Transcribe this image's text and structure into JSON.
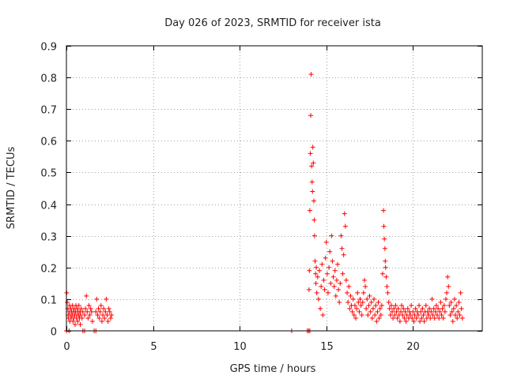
{
  "chart_data": {
    "type": "scatter",
    "title": "Day 026 of 2023, SRMTID for receiver ista",
    "xlabel": "GPS time / hours",
    "ylabel": "SRMTID / TECUs",
    "xlim": [
      0,
      24
    ],
    "ylim": [
      0,
      0.9
    ],
    "xticks": [
      0,
      5,
      10,
      15,
      20
    ],
    "yticks": [
      0,
      0.1,
      0.2,
      0.3,
      0.4,
      0.5,
      0.6,
      0.7,
      0.8,
      0.9
    ],
    "xtick_labels": [
      "0",
      "5",
      "10",
      "15",
      "20"
    ],
    "ytick_labels": [
      "0",
      "0.1",
      "0.2",
      "0.3",
      "0.4",
      "0.5",
      "0.6",
      "0.7",
      "0.8",
      "0.9"
    ],
    "grid": true,
    "marker": "+",
    "color": "#ff0000",
    "series": [
      {
        "name": "SRMTID",
        "points": [
          [
            0.02,
            0.12
          ],
          [
            0.05,
            0.09
          ],
          [
            0.08,
            0.07
          ],
          [
            0.1,
            0.05
          ],
          [
            0.12,
            0.04
          ],
          [
            0.15,
            0.06
          ],
          [
            0.18,
            0.08
          ],
          [
            0.2,
            0.03
          ],
          [
            0.22,
            0.05
          ],
          [
            0.25,
            0.07
          ],
          [
            0.28,
            0.04
          ],
          [
            0.3,
            0.06
          ],
          [
            0.33,
            0.05
          ],
          [
            0.35,
            0.08
          ],
          [
            0.38,
            0.03
          ],
          [
            0.4,
            0.06
          ],
          [
            0.42,
            0.04
          ],
          [
            0.45,
            0.07
          ],
          [
            0.48,
            0.05
          ],
          [
            0.5,
            0.02
          ],
          [
            0.52,
            0.06
          ],
          [
            0.55,
            0.08
          ],
          [
            0.58,
            0.04
          ],
          [
            0.6,
            0.05
          ],
          [
            0.62,
            0.07
          ],
          [
            0.65,
            0.03
          ],
          [
            0.68,
            0.06
          ],
          [
            0.7,
            0.05
          ],
          [
            0.72,
            0.08
          ],
          [
            0.75,
            0.04
          ],
          [
            0.78,
            0.06
          ],
          [
            0.8,
            0.02
          ],
          [
            0.82,
            0.05
          ],
          [
            0.85,
            0.07
          ],
          [
            0.9,
            0.04
          ],
          [
            0.95,
            0.06
          ],
          [
            1.05,
            0.05
          ],
          [
            1.1,
            0.07
          ],
          [
            1.15,
            0.11
          ],
          [
            1.2,
            0.06
          ],
          [
            1.25,
            0.04
          ],
          [
            1.3,
            0.08
          ],
          [
            1.35,
            0.05
          ],
          [
            1.4,
            0.07
          ],
          [
            1.45,
            0.06
          ],
          [
            1.5,
            0.03
          ],
          [
            0.0,
            0.0
          ],
          [
            0.15,
            0.0
          ],
          [
            0.95,
            0.0
          ],
          [
            1.05,
            0.0
          ],
          [
            1.6,
            0.0
          ],
          [
            1.7,
            0.0
          ],
          [
            1.7,
            0.06
          ],
          [
            1.75,
            0.1
          ],
          [
            1.8,
            0.05
          ],
          [
            1.85,
            0.07
          ],
          [
            1.9,
            0.04
          ],
          [
            1.95,
            0.06
          ],
          [
            2.0,
            0.08
          ],
          [
            2.05,
            0.03
          ],
          [
            2.1,
            0.05
          ],
          [
            2.15,
            0.07
          ],
          [
            2.2,
            0.04
          ],
          [
            2.25,
            0.06
          ],
          [
            2.3,
            0.1
          ],
          [
            2.35,
            0.05
          ],
          [
            2.4,
            0.03
          ],
          [
            2.45,
            0.07
          ],
          [
            2.5,
            0.06
          ],
          [
            2.55,
            0.04
          ],
          [
            2.6,
            0.05
          ],
          [
            13.0,
            0.0
          ],
          [
            13.9,
            0.0
          ],
          [
            13.98,
            0.0
          ],
          [
            14.05,
            0.0
          ],
          [
            14.0,
            0.13
          ],
          [
            14.02,
            0.19
          ],
          [
            14.05,
            0.38
          ],
          [
            14.08,
            0.56
          ],
          [
            14.1,
            0.68
          ],
          [
            14.12,
            0.81
          ],
          [
            14.15,
            0.52
          ],
          [
            14.18,
            0.47
          ],
          [
            14.2,
            0.44
          ],
          [
            14.22,
            0.58
          ],
          [
            14.25,
            0.53
          ],
          [
            14.28,
            0.41
          ],
          [
            14.3,
            0.35
          ],
          [
            14.32,
            0.3
          ],
          [
            14.35,
            0.22
          ],
          [
            14.38,
            0.18
          ],
          [
            14.4,
            0.15
          ],
          [
            14.42,
            0.2
          ],
          [
            14.45,
            0.12
          ],
          [
            14.5,
            0.17
          ],
          [
            14.55,
            0.1
          ],
          [
            14.6,
            0.19
          ],
          [
            14.65,
            0.07
          ],
          [
            14.7,
            0.14
          ],
          [
            14.75,
            0.21
          ],
          [
            14.8,
            0.05
          ],
          [
            14.85,
            0.16
          ],
          [
            14.9,
            0.13
          ],
          [
            14.95,
            0.23
          ],
          [
            15.0,
            0.28
          ],
          [
            15.05,
            0.18
          ],
          [
            15.1,
            0.12
          ],
          [
            15.15,
            0.2
          ],
          [
            15.2,
            0.25
          ],
          [
            15.25,
            0.15
          ],
          [
            15.3,
            0.3
          ],
          [
            15.35,
            0.22
          ],
          [
            15.4,
            0.17
          ],
          [
            15.45,
            0.14
          ],
          [
            15.5,
            0.19
          ],
          [
            15.55,
            0.11
          ],
          [
            15.6,
            0.16
          ],
          [
            15.65,
            0.21
          ],
          [
            15.7,
            0.13
          ],
          [
            15.75,
            0.09
          ],
          [
            15.8,
            0.15
          ],
          [
            15.85,
            0.3
          ],
          [
            15.9,
            0.26
          ],
          [
            15.95,
            0.18
          ],
          [
            16.0,
            0.24
          ],
          [
            16.05,
            0.37
          ],
          [
            16.1,
            0.33
          ],
          [
            16.15,
            0.16
          ],
          [
            16.2,
            0.12
          ],
          [
            16.25,
            0.09
          ],
          [
            16.3,
            0.14
          ],
          [
            16.35,
            0.07
          ],
          [
            16.4,
            0.11
          ],
          [
            16.45,
            0.08
          ],
          [
            16.5,
            0.06
          ],
          [
            16.55,
            0.1
          ],
          [
            16.6,
            0.05
          ],
          [
            16.65,
            0.08
          ],
          [
            16.7,
            0.04
          ],
          [
            16.75,
            0.07
          ],
          [
            16.8,
            0.12
          ],
          [
            16.85,
            0.09
          ],
          [
            16.9,
            0.06
          ],
          [
            16.95,
            0.1
          ],
          [
            17.0,
            0.08
          ],
          [
            17.05,
            0.05
          ],
          [
            17.1,
            0.09
          ],
          [
            17.15,
            0.12
          ],
          [
            17.2,
            0.16
          ],
          [
            17.25,
            0.14
          ],
          [
            17.3,
            0.07
          ],
          [
            17.35,
            0.1
          ],
          [
            17.4,
            0.05
          ],
          [
            17.45,
            0.08
          ],
          [
            17.5,
            0.11
          ],
          [
            17.55,
            0.06
          ],
          [
            17.6,
            0.09
          ],
          [
            17.65,
            0.04
          ],
          [
            17.7,
            0.07
          ],
          [
            17.75,
            0.1
          ],
          [
            17.8,
            0.05
          ],
          [
            17.85,
            0.08
          ],
          [
            17.9,
            0.03
          ],
          [
            17.95,
            0.06
          ],
          [
            18.0,
            0.09
          ],
          [
            18.05,
            0.04
          ],
          [
            18.1,
            0.07
          ],
          [
            18.15,
            0.05
          ],
          [
            18.2,
            0.08
          ],
          [
            18.25,
            0.18
          ],
          [
            18.3,
            0.38
          ],
          [
            18.32,
            0.33
          ],
          [
            18.35,
            0.29
          ],
          [
            18.38,
            0.26
          ],
          [
            18.4,
            0.22
          ],
          [
            18.42,
            0.2
          ],
          [
            18.45,
            0.17
          ],
          [
            18.5,
            0.14
          ],
          [
            18.55,
            0.12
          ],
          [
            18.6,
            0.09
          ],
          [
            18.65,
            0.07
          ],
          [
            18.7,
            0.05
          ],
          [
            18.75,
            0.08
          ],
          [
            18.8,
            0.06
          ],
          [
            18.85,
            0.04
          ],
          [
            18.9,
            0.07
          ],
          [
            18.95,
            0.05
          ],
          [
            19.0,
            0.08
          ],
          [
            19.05,
            0.06
          ],
          [
            19.1,
            0.04
          ],
          [
            19.15,
            0.07
          ],
          [
            19.2,
            0.05
          ],
          [
            19.25,
            0.03
          ],
          [
            19.3,
            0.06
          ],
          [
            19.35,
            0.08
          ],
          [
            19.4,
            0.05
          ],
          [
            19.45,
            0.07
          ],
          [
            19.5,
            0.04
          ],
          [
            19.55,
            0.06
          ],
          [
            19.6,
            0.03
          ],
          [
            19.65,
            0.05
          ],
          [
            19.7,
            0.07
          ],
          [
            19.75,
            0.04
          ],
          [
            19.8,
            0.06
          ],
          [
            19.85,
            0.05
          ],
          [
            19.9,
            0.08
          ],
          [
            19.95,
            0.04
          ],
          [
            20.0,
            0.06
          ],
          [
            20.05,
            0.03
          ],
          [
            20.1,
            0.05
          ],
          [
            20.15,
            0.07
          ],
          [
            20.2,
            0.04
          ],
          [
            20.25,
            0.06
          ],
          [
            20.3,
            0.05
          ],
          [
            20.35,
            0.08
          ],
          [
            20.4,
            0.03
          ],
          [
            20.45,
            0.06
          ],
          [
            20.5,
            0.04
          ],
          [
            20.55,
            0.07
          ],
          [
            20.6,
            0.05
          ],
          [
            20.65,
            0.03
          ],
          [
            20.7,
            0.06
          ],
          [
            20.75,
            0.08
          ],
          [
            20.8,
            0.04
          ],
          [
            20.85,
            0.06
          ],
          [
            20.9,
            0.05
          ],
          [
            20.95,
            0.07
          ],
          [
            21.0,
            0.04
          ],
          [
            21.05,
            0.06
          ],
          [
            21.1,
            0.1
          ],
          [
            21.15,
            0.05
          ],
          [
            21.2,
            0.07
          ],
          [
            21.25,
            0.04
          ],
          [
            21.3,
            0.06
          ],
          [
            21.35,
            0.08
          ],
          [
            21.4,
            0.05
          ],
          [
            21.45,
            0.07
          ],
          [
            21.5,
            0.04
          ],
          [
            21.55,
            0.06
          ],
          [
            21.6,
            0.09
          ],
          [
            21.65,
            0.05
          ],
          [
            21.7,
            0.07
          ],
          [
            21.75,
            0.04
          ],
          [
            21.8,
            0.08
          ],
          [
            21.85,
            0.06
          ],
          [
            21.9,
            0.1
          ],
          [
            21.95,
            0.12
          ],
          [
            22.0,
            0.17
          ],
          [
            22.05,
            0.14
          ],
          [
            22.1,
            0.08
          ],
          [
            22.15,
            0.05
          ],
          [
            22.2,
            0.09
          ],
          [
            22.25,
            0.06
          ],
          [
            22.3,
            0.03
          ],
          [
            22.35,
            0.07
          ],
          [
            22.4,
            0.1
          ],
          [
            22.45,
            0.05
          ],
          [
            22.5,
            0.08
          ],
          [
            22.55,
            0.04
          ],
          [
            22.6,
            0.06
          ],
          [
            22.65,
            0.09
          ],
          [
            22.7,
            0.05
          ],
          [
            22.75,
            0.12
          ],
          [
            22.8,
            0.07
          ],
          [
            22.85,
            0.04
          ]
        ]
      }
    ]
  }
}
